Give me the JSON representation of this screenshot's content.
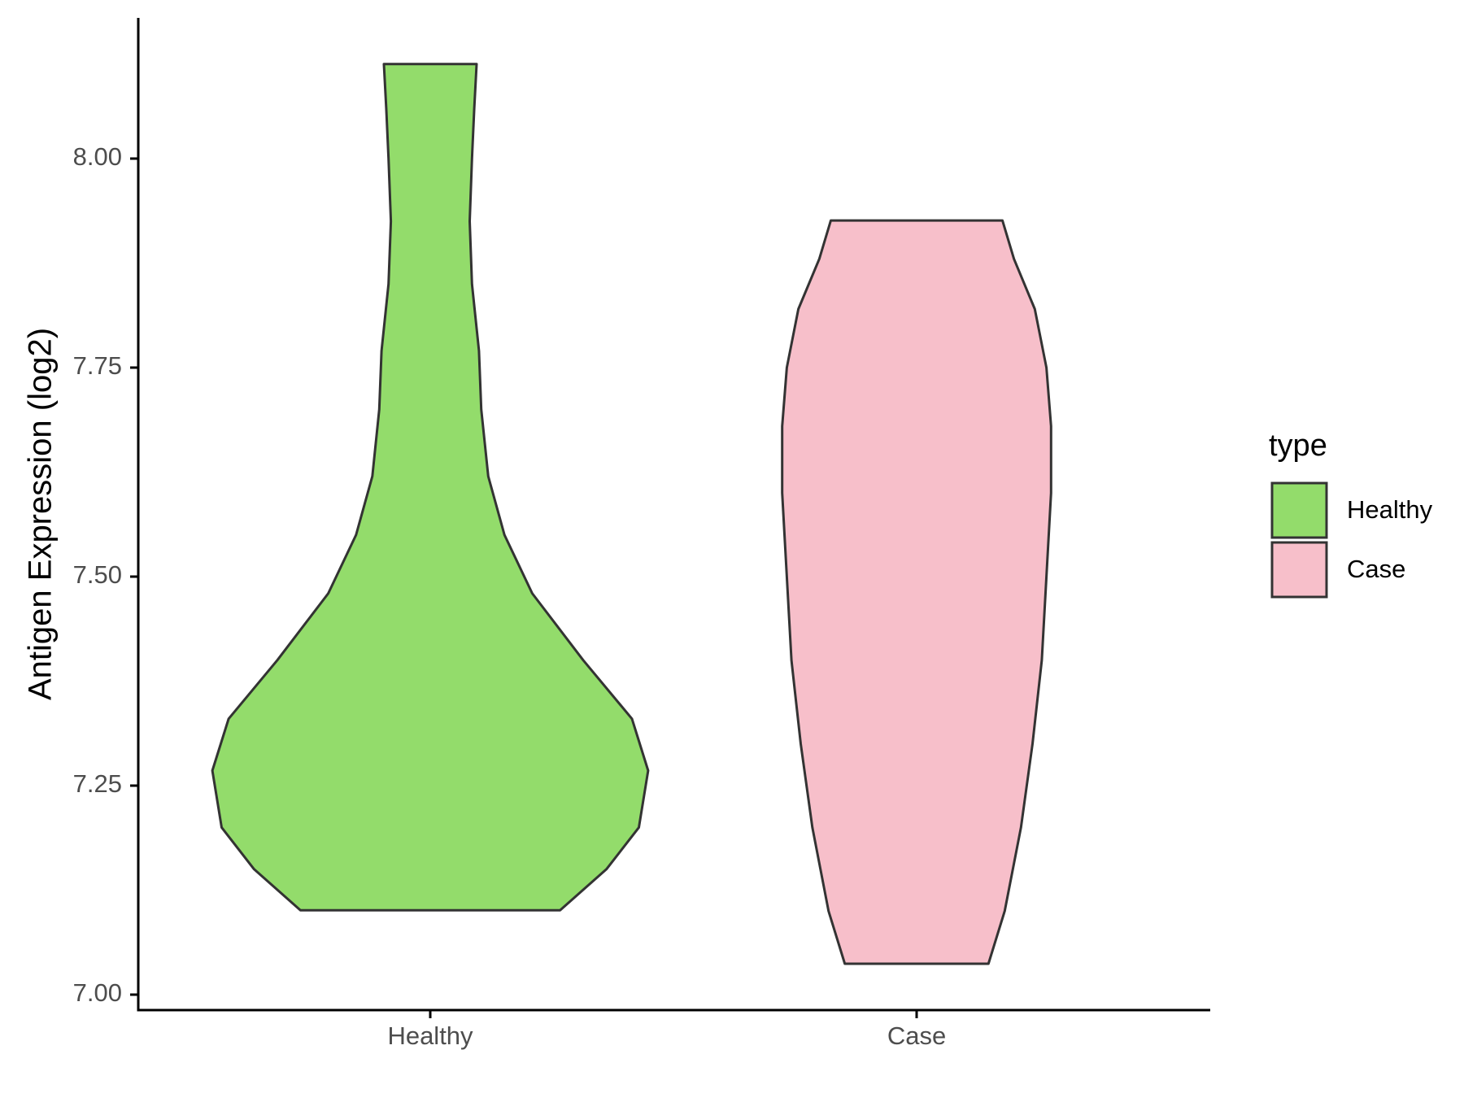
{
  "chart_data": {
    "type": "violin",
    "title": "",
    "xlabel": "",
    "ylabel": "Antigen Expression (log2)",
    "categories": [
      "Healthy",
      "Case"
    ],
    "ylim": [
      6.98,
      8.16
    ],
    "yticks": [
      7.0,
      7.25,
      7.5,
      7.75,
      8.0
    ],
    "ytick_labels": [
      "7.00",
      "7.25",
      "7.50",
      "7.75",
      "8.00"
    ],
    "grid": false,
    "legend": {
      "title": "type",
      "position": "right",
      "entries": [
        {
          "label": "Healthy",
          "color": "#93DC6B"
        },
        {
          "label": "Case",
          "color": "#F7BFCA"
        }
      ]
    },
    "series": [
      {
        "name": "Healthy",
        "color": "#93DC6B",
        "min": 7.101,
        "max": 8.113,
        "density_profile": [
          [
            7.101,
            0.56
          ],
          [
            7.15,
            0.76
          ],
          [
            7.2,
            0.9
          ],
          [
            7.268,
            0.94
          ],
          [
            7.33,
            0.87
          ],
          [
            7.4,
            0.66
          ],
          [
            7.48,
            0.44
          ],
          [
            7.55,
            0.32
          ],
          [
            7.62,
            0.25
          ],
          [
            7.7,
            0.22
          ],
          [
            7.77,
            0.21
          ],
          [
            7.85,
            0.18
          ],
          [
            7.925,
            0.17
          ],
          [
            8.0,
            0.18
          ],
          [
            8.06,
            0.19
          ],
          [
            8.113,
            0.2
          ]
        ]
      },
      {
        "name": "Case",
        "color": "#F7BFCA",
        "min": 7.037,
        "max": 7.926,
        "density_profile": [
          [
            7.037,
            0.31
          ],
          [
            7.1,
            0.38
          ],
          [
            7.2,
            0.45
          ],
          [
            7.3,
            0.5
          ],
          [
            7.4,
            0.54
          ],
          [
            7.5,
            0.56
          ],
          [
            7.6,
            0.58
          ],
          [
            7.68,
            0.58
          ],
          [
            7.75,
            0.56
          ],
          [
            7.82,
            0.51
          ],
          [
            7.88,
            0.42
          ],
          [
            7.926,
            0.37
          ]
        ]
      }
    ]
  }
}
